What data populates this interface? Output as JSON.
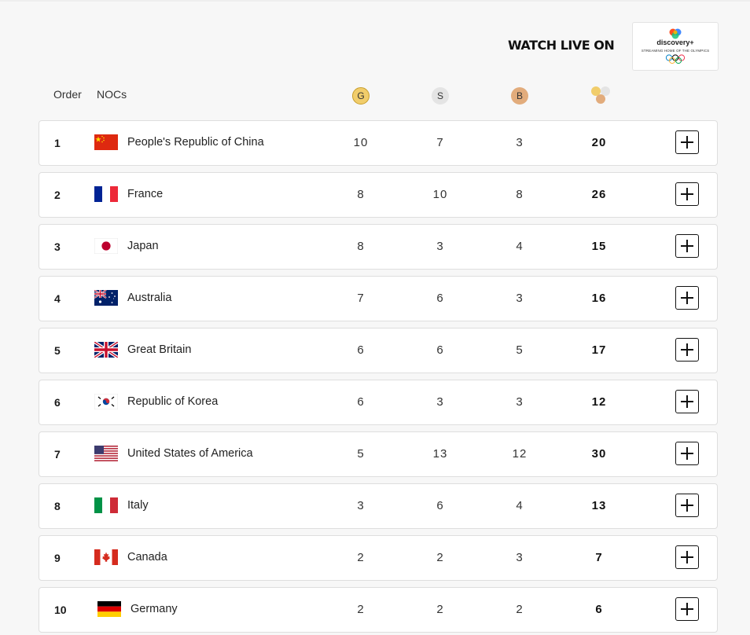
{
  "promo": {
    "watch_label": "WATCH LIVE ON",
    "logo_name": "discovery+",
    "logo_tagline": "STREAMING HOME OF THE OLYMPICS"
  },
  "table_header": {
    "order": "Order",
    "nocs": "NOCs",
    "gold": "G",
    "silver": "S",
    "bronze": "B",
    "total_icon": "total-medals-icon"
  },
  "colors": {
    "gold": "#f1cd6b",
    "silver": "#e4e4e4",
    "bronze": "#e2ac7c"
  },
  "rows": [
    {
      "rank": "1",
      "country": "People's Republic of China",
      "gold": "10",
      "silver": "7",
      "bronze": "3",
      "total": "20"
    },
    {
      "rank": "2",
      "country": "France",
      "gold": "8",
      "silver": "10",
      "bronze": "8",
      "total": "26"
    },
    {
      "rank": "3",
      "country": "Japan",
      "gold": "8",
      "silver": "3",
      "bronze": "4",
      "total": "15"
    },
    {
      "rank": "4",
      "country": "Australia",
      "gold": "7",
      "silver": "6",
      "bronze": "3",
      "total": "16"
    },
    {
      "rank": "5",
      "country": "Great Britain",
      "gold": "6",
      "silver": "6",
      "bronze": "5",
      "total": "17"
    },
    {
      "rank": "6",
      "country": "Republic of Korea",
      "gold": "6",
      "silver": "3",
      "bronze": "3",
      "total": "12"
    },
    {
      "rank": "7",
      "country": "United States of America",
      "gold": "5",
      "silver": "13",
      "bronze": "12",
      "total": "30"
    },
    {
      "rank": "8",
      "country": "Italy",
      "gold": "3",
      "silver": "6",
      "bronze": "4",
      "total": "13"
    },
    {
      "rank": "9",
      "country": "Canada",
      "gold": "2",
      "silver": "2",
      "bronze": "3",
      "total": "7"
    },
    {
      "rank": "10",
      "country": "Germany",
      "gold": "2",
      "silver": "2",
      "bronze": "2",
      "total": "6"
    }
  ]
}
